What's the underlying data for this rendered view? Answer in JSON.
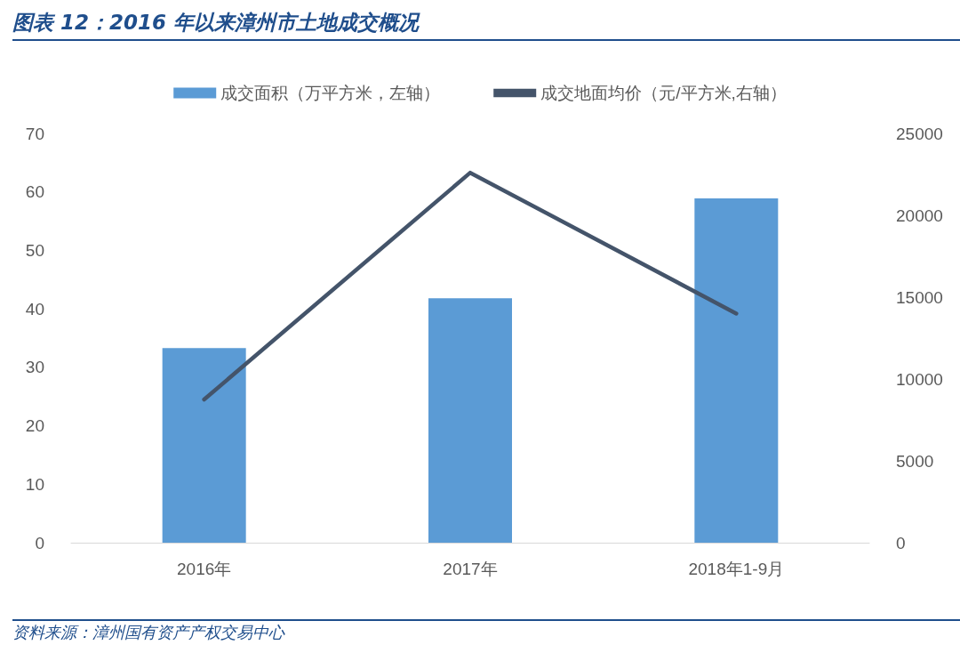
{
  "chart_data": {
    "type": "bar",
    "title": "图表 12：2016 年以来漳州市土地成交概况",
    "categories": [
      "2016年",
      "2017年",
      "2018年1-9月"
    ],
    "series": [
      {
        "name": "成交面积（万平方米，左轴）",
        "color": "#5b9bd5",
        "values": [
          33.3,
          41.8,
          58.9
        ]
      },
      {
        "name": "成交地面均价（元/平方米,右轴）",
        "type": "line",
        "axis": "y2",
        "color": "#44546a",
        "values": [
          8750,
          22600,
          14000
        ]
      }
    ],
    "ylim": [
      0,
      70
    ],
    "yticks": [
      0,
      10,
      20,
      30,
      40,
      50,
      60,
      70
    ],
    "y2lim": [
      0,
      25000
    ],
    "y2ticks": [
      0,
      5000,
      10000,
      15000,
      20000,
      25000
    ],
    "grid": false,
    "legend": "top",
    "marker": "none",
    "line_style": "solid",
    "annotations": [
      "资料来源：漳州国有资产产权交易中心"
    ]
  }
}
